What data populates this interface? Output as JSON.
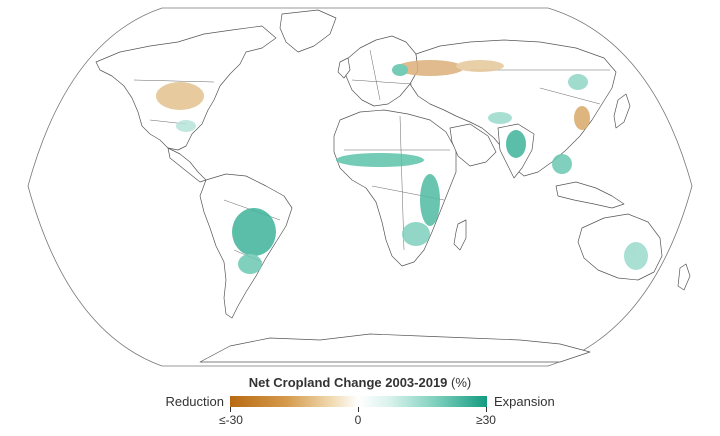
{
  "legend": {
    "title_bold": "Net Cropland Change 2003-2019",
    "title_unit": "(%)",
    "left_label": "Reduction",
    "right_label": "Expansion",
    "ticks": [
      "≤-30",
      "0",
      "≥30"
    ],
    "colors": {
      "reduction": "#b86a12",
      "neutral": "#ffffff",
      "expansion": "#139b80"
    }
  },
  "map": {
    "projection": "Robinson",
    "land_fill": "#ffffff",
    "border_color": "#555555"
  }
}
